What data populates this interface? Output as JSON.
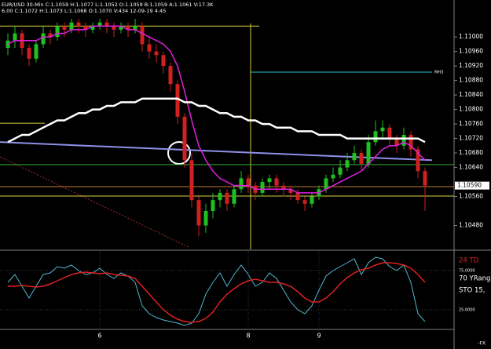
{
  "chart_data": {
    "type": "candlestick",
    "header": [
      "EUR/USD 30-Min C:1.1059 H:1.1077 L:1.1052 O:1.1059 B:1.1059 A:1.1061 V:17.3K",
      "6.00 C:1.1072 H:1.1073 L:1.1068 O:1.1070 V:434 12-09-19 4:45"
    ],
    "categories": [
      null,
      null,
      null,
      null,
      null,
      null,
      null,
      null,
      null,
      null,
      null,
      null,
      null,
      "6",
      null,
      null,
      null,
      null,
      null,
      null,
      null,
      null,
      null,
      null,
      null,
      null,
      null,
      null,
      null,
      null,
      null,
      null,
      null,
      null,
      "8",
      null,
      null,
      null,
      null,
      null,
      null,
      null,
      null,
      null,
      "9",
      null,
      null,
      null,
      null,
      null,
      null,
      null,
      null,
      null,
      null,
      null,
      null,
      null,
      null,
      null
    ],
    "open": [
      1.1097,
      1.1099,
      1.1101,
      1.1097,
      1.1094,
      1.1098,
      1.1101,
      1.11,
      1.1103,
      1.1102,
      1.1104,
      1.1103,
      1.1102,
      1.1103,
      1.1104,
      1.1103,
      1.1102,
      1.1103,
      1.1102,
      1.1103,
      1.1098,
      1.1096,
      1.1095,
      1.1092,
      1.1087,
      1.1078,
      1.1066,
      1.1055,
      1.1048,
      1.1052,
      1.1055,
      1.1057,
      1.1054,
      1.1058,
      1.1061,
      1.1059,
      1.1057,
      1.106,
      1.1061,
      1.1059,
      1.1058,
      1.1057,
      1.1055,
      1.1054,
      1.1056,
      1.1058,
      1.1061,
      1.1062,
      1.1064,
      1.1066,
      1.1068,
      1.1065,
      1.1071,
      1.1074,
      1.1075,
      1.1072,
      1.107,
      1.1073,
      1.1069,
      1.1063
    ],
    "high": [
      1.1101,
      1.1103,
      1.1102,
      1.1098,
      1.1099,
      1.1103,
      1.1102,
      1.1104,
      1.1104,
      1.1105,
      1.1105,
      1.1104,
      1.1104,
      1.1105,
      1.1105,
      1.1104,
      1.1104,
      1.1104,
      1.1105,
      1.1104,
      1.11,
      1.1098,
      1.1096,
      1.1093,
      1.1088,
      1.1079,
      1.1068,
      1.1056,
      1.1054,
      1.1057,
      1.1058,
      1.1058,
      1.1059,
      1.1063,
      1.1062,
      1.106,
      1.1061,
      1.1062,
      1.1062,
      1.106,
      1.1059,
      1.1058,
      1.1056,
      1.1057,
      1.1059,
      1.1062,
      1.1064,
      1.1066,
      1.1068,
      1.107,
      1.1069,
      1.1073,
      1.1077,
      1.1077,
      1.1076,
      1.1073,
      1.1075,
      1.1074,
      1.107,
      1.1064
    ],
    "low": [
      1.1095,
      1.1097,
      1.1095,
      1.1092,
      1.1093,
      1.1097,
      1.1098,
      1.1099,
      1.11,
      1.1101,
      1.1101,
      1.11,
      1.1101,
      1.1102,
      1.1101,
      1.11,
      1.1101,
      1.11,
      1.1101,
      1.1096,
      1.1094,
      1.1093,
      1.109,
      1.1085,
      1.1076,
      1.1064,
      1.1053,
      1.1045,
      1.1046,
      1.105,
      1.1053,
      1.1052,
      1.1053,
      1.1057,
      1.1057,
      1.1055,
      1.1056,
      1.1058,
      1.1057,
      1.1056,
      1.1055,
      1.1054,
      1.1052,
      1.1053,
      1.1055,
      1.1057,
      1.106,
      1.1061,
      1.1063,
      1.1065,
      1.1063,
      1.1064,
      1.107,
      1.1072,
      1.107,
      1.1068,
      1.1069,
      1.1067,
      1.1061,
      1.1052
    ],
    "close": [
      1.1099,
      1.1101,
      1.1097,
      1.1094,
      1.1098,
      1.1101,
      1.11,
      1.1103,
      1.1102,
      1.1104,
      1.1103,
      1.1102,
      1.1103,
      1.1104,
      1.1103,
      1.1102,
      1.1103,
      1.1102,
      1.1103,
      1.1098,
      1.1096,
      1.1095,
      1.1092,
      1.1087,
      1.1078,
      1.1066,
      1.1055,
      1.1048,
      1.1052,
      1.1055,
      1.1057,
      1.1054,
      1.1058,
      1.1061,
      1.1059,
      1.1057,
      1.106,
      1.1061,
      1.1059,
      1.1058,
      1.1057,
      1.1055,
      1.1054,
      1.1056,
      1.1058,
      1.1061,
      1.1062,
      1.1064,
      1.1066,
      1.1068,
      1.1065,
      1.1071,
      1.1074,
      1.1075,
      1.1072,
      1.107,
      1.1073,
      1.1069,
      1.1063,
      1.1059
    ],
    "up_color": "#20c020",
    "down_color": "#d02020",
    "overlays": [
      {
        "color": "#e020e0",
        "values": [
          1.1098,
          1.1099,
          1.1099,
          1.1099,
          1.1099,
          1.11,
          1.11,
          1.1101,
          1.1101,
          1.1102,
          1.1102,
          1.1102,
          1.1103,
          1.1103,
          1.1103,
          1.1103,
          1.1103,
          1.1102,
          1.1102,
          1.1101,
          1.11,
          1.1099,
          1.1098,
          1.1096,
          1.1092,
          1.1085,
          1.1077,
          1.107,
          1.1066,
          1.1063,
          1.1061,
          1.106,
          1.1059,
          1.1059,
          1.1059,
          1.1058,
          1.1058,
          1.1058,
          1.1058,
          1.1058,
          1.1058,
          1.1057,
          1.1057,
          1.1057,
          1.1057,
          1.1058,
          1.1059,
          1.106,
          1.1061,
          1.1062,
          1.1063,
          1.1065,
          1.1067,
          1.1069,
          1.107,
          1.107,
          1.1071,
          1.107,
          1.1068,
          1.1066
        ]
      },
      {
        "color": "#ffffff",
        "values": [
          1.1071,
          1.1072,
          1.1073,
          1.1073,
          1.1074,
          1.1075,
          1.1076,
          1.1077,
          1.1077,
          1.1078,
          1.1079,
          1.1079,
          1.108,
          1.108,
          1.1081,
          1.1081,
          1.1082,
          1.1082,
          1.1082,
          1.1083,
          1.1083,
          1.1083,
          1.1083,
          1.1083,
          1.1083,
          1.1082,
          1.1082,
          1.1081,
          1.1081,
          1.108,
          1.1079,
          1.1079,
          1.1078,
          1.1078,
          1.1077,
          1.1077,
          1.1076,
          1.1076,
          1.1075,
          1.1075,
          1.1075,
          1.1074,
          1.1074,
          1.1074,
          1.1073,
          1.1073,
          1.1073,
          1.1073,
          1.1072,
          1.1072,
          1.1072,
          1.1072,
          1.1072,
          1.1072,
          1.1072,
          1.1072,
          1.1072,
          1.1072,
          1.1072,
          1.1071
        ]
      }
    ],
    "trendline": {
      "color": "#9090e8",
      "values": [
        1.1071,
        1.1066
      ]
    },
    "levels": [
      {
        "value": 1.1103,
        "color": "#d8d040"
      },
      {
        "value": 1.10762,
        "color": "#d8d040"
      },
      {
        "value": 1.10903,
        "color": "#30c8d8",
        "label": "MH3"
      },
      {
        "value": 1.10648,
        "color": "#30b030"
      },
      {
        "value": 1.10587,
        "color": "#c07830"
      },
      {
        "value": 1.10561,
        "color": "#d8d040"
      }
    ],
    "ylim": [
      1.10414,
      1.11102
    ],
    "yticks": [
      {
        "value": 1.11,
        "label": "1.11000"
      },
      {
        "value": 1.1096,
        "label": "1.10960"
      },
      {
        "value": 1.1092,
        "label": "1.10920"
      },
      {
        "value": 1.1088,
        "label": "1.10880"
      },
      {
        "value": 1.1084,
        "label": "1.10840"
      },
      {
        "value": 1.108,
        "label": "1.10800"
      },
      {
        "value": 1.1076,
        "label": "1.10760"
      },
      {
        "value": 1.1072,
        "label": "1.10720"
      },
      {
        "value": 1.1068,
        "label": "1.10680"
      },
      {
        "value": 1.1064,
        "label": "1.10640"
      },
      {
        "value": 1.1056,
        "label": "1.10560"
      },
      {
        "value": 1.1048,
        "label": "1.10480"
      }
    ],
    "last_price": {
      "value": 1.1059,
      "label": "1.10590"
    },
    "oscillator": {
      "labels": [
        "24 TD",
        "70 YRang",
        "STO 15,"
      ],
      "ylim": [
        0,
        100
      ],
      "yticks": [
        {
          "value": 75,
          "label": "75.0000"
        },
        {
          "value": 25,
          "label": "25.0000"
        }
      ],
      "series": [
        {
          "color": "#50b8d0",
          "values": [
            60,
            70,
            55,
            40,
            55,
            70,
            72,
            80,
            78,
            82,
            75,
            70,
            72,
            78,
            70,
            65,
            72,
            68,
            60,
            30,
            20,
            15,
            12,
            10,
            8,
            5,
            8,
            20,
            45,
            60,
            72,
            55,
            70,
            82,
            70,
            55,
            60,
            72,
            65,
            50,
            35,
            25,
            20,
            30,
            50,
            68,
            75,
            80,
            85,
            90,
            70,
            85,
            92,
            90,
            80,
            75,
            82,
            60,
            20,
            10
          ]
        },
        {
          "color": "#e02020",
          "values": [
            55,
            55,
            56,
            55,
            54,
            55,
            58,
            62,
            66,
            70,
            72,
            73,
            72,
            71,
            72,
            70,
            69,
            68,
            65,
            55,
            45,
            35,
            25,
            18,
            13,
            10,
            9,
            10,
            14,
            22,
            35,
            45,
            52,
            58,
            62,
            64,
            62,
            60,
            60,
            58,
            55,
            48,
            40,
            35,
            35,
            40,
            48,
            58,
            66,
            72,
            76,
            78,
            82,
            85,
            85,
            84,
            82,
            78,
            70,
            60
          ]
        }
      ]
    },
    "footer": "-FX"
  }
}
